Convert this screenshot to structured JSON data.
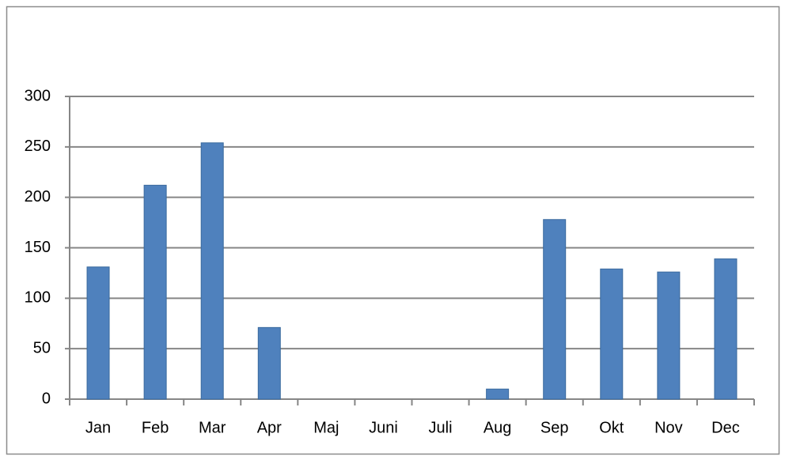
{
  "chart_data": {
    "type": "bar",
    "categories": [
      "Jan",
      "Feb",
      "Mar",
      "Apr",
      "Maj",
      "Juni",
      "Juli",
      "Aug",
      "Sep",
      "Okt",
      "Nov",
      "Dec"
    ],
    "values": [
      131,
      212,
      254,
      71,
      0,
      0,
      0,
      10,
      178,
      129,
      126,
      139
    ],
    "color": "#4f81bd",
    "ylim": [
      0,
      300
    ],
    "yticks": [
      0,
      50,
      100,
      150,
      200,
      250,
      300
    ],
    "grid": true
  }
}
